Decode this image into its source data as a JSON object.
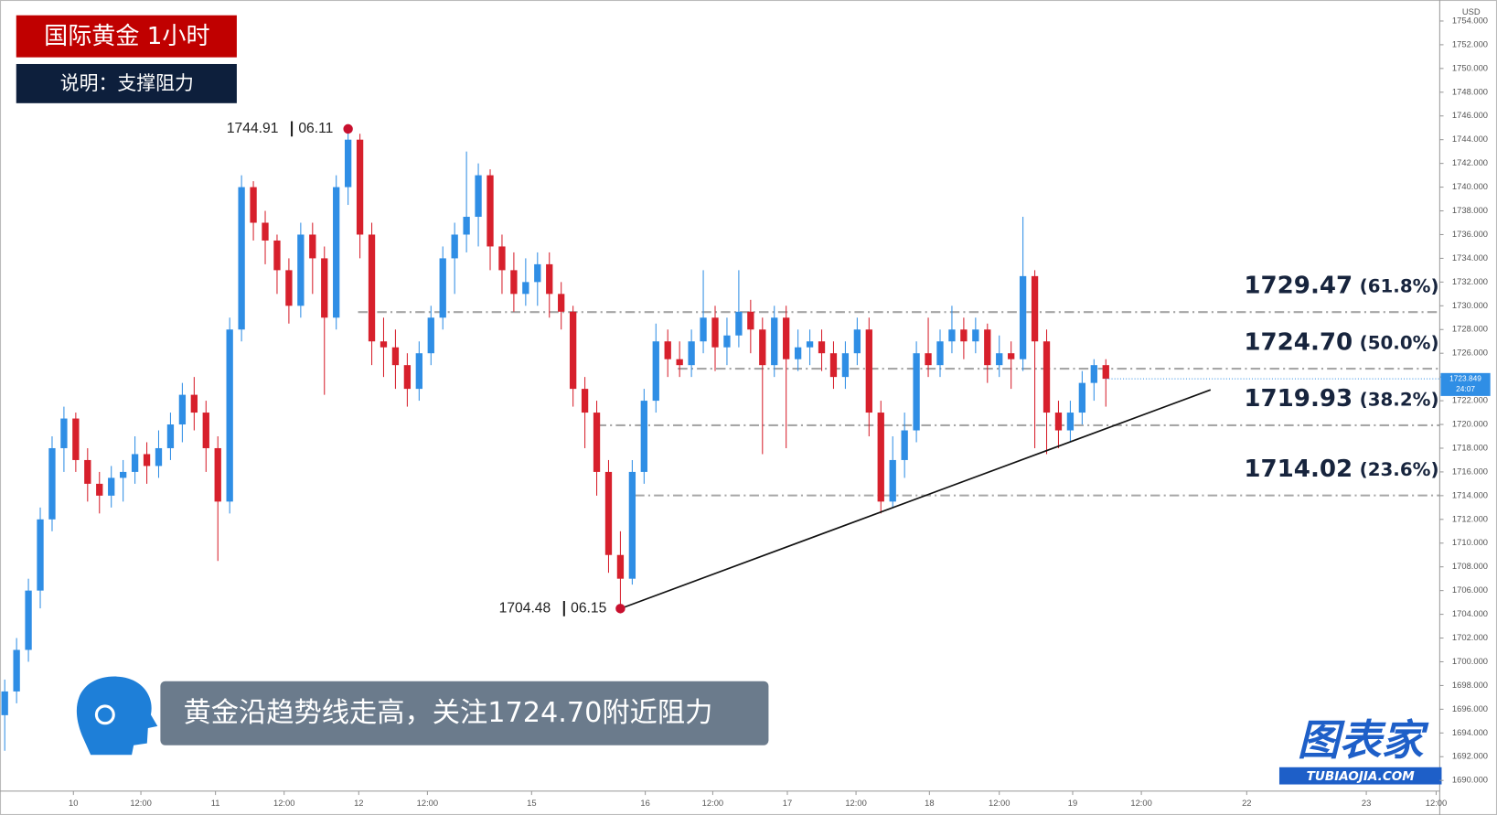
{
  "chart_data": {
    "type": "candlestick",
    "title": "国际黄金  1小时",
    "subtitle": "说明：支撑阻力",
    "caption": "黄金沿趋势线走高，关注1724.70附近阻力",
    "logo": "图表家",
    "logo_url": "TUBIAOJIA.COM",
    "currency": "USD",
    "countdown": "24:07",
    "up_color": "#2f8ee5",
    "down_color": "#d7202c",
    "ylim": [
      1689.1,
      1755.77
    ],
    "xlim": [
      -0.4,
      121.2
    ],
    "yticks": [
      {
        "value": 1690,
        "label": "1690.000"
      },
      {
        "value": 1692,
        "label": "1692.000"
      },
      {
        "value": 1694,
        "label": "1694.000"
      },
      {
        "value": 1696,
        "label": "1696.000"
      },
      {
        "value": 1698,
        "label": "1698.000"
      },
      {
        "value": 1700,
        "label": "1700.000"
      },
      {
        "value": 1702,
        "label": "1702.000"
      },
      {
        "value": 1704,
        "label": "1704.000"
      },
      {
        "value": 1706,
        "label": "1706.000"
      },
      {
        "value": 1708,
        "label": "1708.000"
      },
      {
        "value": 1710,
        "label": "1710.000"
      },
      {
        "value": 1712,
        "label": "1712.000"
      },
      {
        "value": 1714,
        "label": "1714.000"
      },
      {
        "value": 1716,
        "label": "1716.000"
      },
      {
        "value": 1718,
        "label": "1718.000"
      },
      {
        "value": 1720,
        "label": "1720.000"
      },
      {
        "value": 1722,
        "label": "1722.000"
      },
      {
        "value": 1724,
        "label": "1724.000"
      },
      {
        "value": 1726,
        "label": "1726.000"
      },
      {
        "value": 1728,
        "label": "1728.000"
      },
      {
        "value": 1730,
        "label": "1730.000"
      },
      {
        "value": 1732,
        "label": "1732.000"
      },
      {
        "value": 1734,
        "label": "1734.000"
      },
      {
        "value": 1736,
        "label": "1736.000"
      },
      {
        "value": 1738,
        "label": "1738.000"
      },
      {
        "value": 1740,
        "label": "1740.000"
      },
      {
        "value": 1742,
        "label": "1742.000"
      },
      {
        "value": 1744,
        "label": "1744.000"
      },
      {
        "value": 1746,
        "label": "1746.000"
      },
      {
        "value": 1748,
        "label": "1748.000"
      },
      {
        "value": 1750,
        "label": "1750.000"
      },
      {
        "value": 1752,
        "label": "1752.000"
      },
      {
        "value": 1754,
        "label": "1754.000"
      }
    ],
    "xticks": [
      {
        "value": 5.8,
        "label": "10"
      },
      {
        "value": 11.5,
        "label": "12:00"
      },
      {
        "value": 17.8,
        "label": "11"
      },
      {
        "value": 23.6,
        "label": "12:00"
      },
      {
        "value": 29.9,
        "label": "12"
      },
      {
        "value": 35.7,
        "label": "12:00"
      },
      {
        "value": 44.5,
        "label": "15"
      },
      {
        "value": 54.1,
        "label": "16"
      },
      {
        "value": 59.8,
        "label": "12:00"
      },
      {
        "value": 66.1,
        "label": "17"
      },
      {
        "value": 71.9,
        "label": "12:00"
      },
      {
        "value": 78.1,
        "label": "18"
      },
      {
        "value": 84,
        "label": "12:00"
      },
      {
        "value": 90.2,
        "label": "19"
      },
      {
        "value": 96,
        "label": "12:00"
      },
      {
        "value": 104.9,
        "label": "22"
      },
      {
        "value": 115,
        "label": "23"
      },
      {
        "value": 120.9,
        "label": "12:00"
      }
    ],
    "fib_levels": [
      {
        "value": 1729.47,
        "label": "1729.47",
        "ratio": "(61.8%)"
      },
      {
        "value": 1724.7,
        "label": "1724.70",
        "ratio": "(50.0%)"
      },
      {
        "value": 1719.93,
        "label": "1719.93",
        "ratio": "(38.2%)"
      },
      {
        "value": 1714.02,
        "label": "1714.02",
        "ratio": "(23.6%)"
      }
    ],
    "annotations": [
      {
        "date": "06.11"
      },
      {
        "date": "06.15"
      }
    ],
    "candles": [
      [
        1695.5,
        1698.5,
        1692.5,
        1697.5
      ],
      [
        1697.5,
        1702,
        1696.5,
        1701
      ],
      [
        1701,
        1707,
        1700,
        1706
      ],
      [
        1706,
        1713,
        1704.5,
        1712
      ],
      [
        1712,
        1719,
        1711,
        1718
      ],
      [
        1718,
        1721.5,
        1716,
        1720.5
      ],
      [
        1720.5,
        1721,
        1716,
        1717
      ],
      [
        1717,
        1718,
        1713.5,
        1715
      ],
      [
        1715,
        1716,
        1712.5,
        1714
      ],
      [
        1714,
        1716.5,
        1713,
        1715.5
      ],
      [
        1715.5,
        1717,
        1713.5,
        1716
      ],
      [
        1716,
        1719,
        1715,
        1717.5
      ],
      [
        1717.5,
        1718.5,
        1715,
        1716.5
      ],
      [
        1716.5,
        1719.5,
        1715.5,
        1718
      ],
      [
        1718,
        1721,
        1717,
        1720
      ],
      [
        1720,
        1723.5,
        1718.5,
        1722.5
      ],
      [
        1722.5,
        1724,
        1719.5,
        1721
      ],
      [
        1721,
        1722,
        1716,
        1718
      ],
      [
        1718,
        1719,
        1708.5,
        1713.5
      ],
      [
        1713.5,
        1729,
        1712.5,
        1728
      ],
      [
        1728,
        1741,
        1727,
        1740
      ],
      [
        1740,
        1740.5,
        1735.5,
        1737
      ],
      [
        1737,
        1738,
        1733.5,
        1735.5
      ],
      [
        1735.5,
        1736,
        1731,
        1733
      ],
      [
        1733,
        1734,
        1728.5,
        1730
      ],
      [
        1730,
        1737,
        1729,
        1736
      ],
      [
        1736,
        1737,
        1731,
        1734
      ],
      [
        1734,
        1735,
        1722.5,
        1729
      ],
      [
        1729,
        1741,
        1728,
        1740
      ],
      [
        1740,
        1744.91,
        1738.5,
        1744
      ],
      [
        1744,
        1744.5,
        1734,
        1736
      ],
      [
        1736,
        1737,
        1725,
        1727
      ],
      [
        1727,
        1729,
        1724,
        1726.5
      ],
      [
        1726.5,
        1728,
        1723,
        1725
      ],
      [
        1725,
        1726,
        1721.5,
        1723
      ],
      [
        1723,
        1727,
        1722,
        1726
      ],
      [
        1726,
        1730,
        1725,
        1729
      ],
      [
        1729,
        1735,
        1728,
        1734
      ],
      [
        1734,
        1737,
        1731,
        1736
      ],
      [
        1736,
        1743,
        1734.5,
        1737.5
      ],
      [
        1737.5,
        1742,
        1735,
        1741
      ],
      [
        1741,
        1741.5,
        1733,
        1735
      ],
      [
        1735,
        1736,
        1731,
        1733
      ],
      [
        1733,
        1734.5,
        1729.5,
        1731
      ],
      [
        1731,
        1734,
        1730,
        1732
      ],
      [
        1732,
        1734.5,
        1730,
        1733.5
      ],
      [
        1733.5,
        1734.5,
        1729,
        1731
      ],
      [
        1731,
        1732,
        1728,
        1729.5
      ],
      [
        1729.5,
        1730,
        1721.5,
        1723
      ],
      [
        1723,
        1724,
        1718,
        1721
      ],
      [
        1721,
        1722,
        1714,
        1716
      ],
      [
        1716,
        1717,
        1707.5,
        1709
      ],
      [
        1709,
        1711,
        1704.48,
        1707
      ],
      [
        1707,
        1717,
        1706.5,
        1716
      ],
      [
        1716,
        1723,
        1715,
        1722
      ],
      [
        1722,
        1728.5,
        1721,
        1727
      ],
      [
        1727,
        1728,
        1724,
        1725.5
      ],
      [
        1725.5,
        1727,
        1724,
        1725
      ],
      [
        1725,
        1728,
        1724,
        1727
      ],
      [
        1727,
        1733,
        1726,
        1729
      ],
      [
        1729,
        1730,
        1724.5,
        1726.5
      ],
      [
        1726.5,
        1729,
        1725,
        1727.5
      ],
      [
        1727.5,
        1733,
        1726.5,
        1729.5
      ],
      [
        1729.5,
        1730.5,
        1726,
        1728
      ],
      [
        1728,
        1729,
        1717.5,
        1725
      ],
      [
        1725,
        1730,
        1724,
        1729
      ],
      [
        1729,
        1730,
        1718,
        1725.5
      ],
      [
        1725.5,
        1728,
        1724.5,
        1726.5
      ],
      [
        1726.5,
        1728,
        1725,
        1727
      ],
      [
        1727,
        1728,
        1724.5,
        1726
      ],
      [
        1726,
        1727,
        1723,
        1724
      ],
      [
        1724,
        1727,
        1723,
        1726
      ],
      [
        1726,
        1729,
        1725,
        1728
      ],
      [
        1728,
        1729,
        1719,
        1721
      ],
      [
        1721,
        1722,
        1712.5,
        1713.5
      ],
      [
        1713.5,
        1719,
        1713,
        1717
      ],
      [
        1717,
        1721,
        1715.5,
        1719.5
      ],
      [
        1719.5,
        1727,
        1718.5,
        1726
      ],
      [
        1726,
        1729,
        1724,
        1725
      ],
      [
        1725,
        1728,
        1724,
        1727
      ],
      [
        1727,
        1730,
        1726,
        1728
      ],
      [
        1728,
        1729,
        1725.5,
        1727
      ],
      [
        1727,
        1729,
        1726,
        1728
      ],
      [
        1728,
        1728.5,
        1723.5,
        1725
      ],
      [
        1725,
        1727.5,
        1724,
        1726
      ],
      [
        1726,
        1727,
        1723,
        1725.5
      ],
      [
        1725.5,
        1737.5,
        1724.5,
        1732.5
      ],
      [
        1732.5,
        1733,
        1718,
        1727
      ],
      [
        1727,
        1728,
        1717.5,
        1721
      ],
      [
        1721,
        1722,
        1718,
        1719.5
      ],
      [
        1719.5,
        1722,
        1718.5,
        1721
      ],
      [
        1721,
        1724.5,
        1720,
        1723.5
      ],
      [
        1723.5,
        1725.5,
        1722,
        1725
      ],
      [
        1725,
        1725.5,
        1721.5,
        1723.849
      ]
    ]
  }
}
